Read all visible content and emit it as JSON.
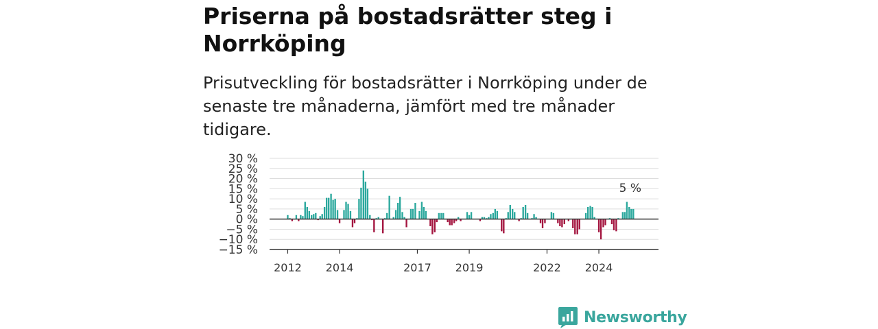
{
  "header": {
    "title": "Priserna på bostadsrätter steg i Norrköping",
    "subtitle": "Prisutveckling för bostadsrätter i Norrköping under de senaste tre månaderna, jämfört med tre månader tidigare."
  },
  "brand": {
    "name": "Newsworthy"
  },
  "colors": {
    "positive": "#2ba89d",
    "negative": "#a3153f",
    "grid": "#dddddd",
    "axis": "#333333",
    "brand": "#3aa69d"
  },
  "chart_data": {
    "type": "bar",
    "title": "Priserna på bostadsrätter steg i Norrköping",
    "subtitle": "Prisutveckling för bostadsrätter i Norrköping under de senaste tre månaderna, jämfört med tre månader tidigare.",
    "xlabel": "",
    "ylabel": "",
    "unit": "%",
    "ylim": [
      -15,
      30
    ],
    "y_ticks": [
      30,
      25,
      20,
      15,
      10,
      5,
      0,
      -5,
      -10,
      -15
    ],
    "y_tick_labels": [
      "30 %",
      "25 %",
      "20 %",
      "15 %",
      "10 %",
      "5 %",
      "0 %",
      "−5 %",
      "−10 %",
      "−15 %"
    ],
    "x_ticks": [
      {
        "label": "2012",
        "pos": 2012.0
      },
      {
        "label": "2014",
        "pos": 2014.0
      },
      {
        "label": "2017",
        "pos": 2017.0
      },
      {
        "label": "2019",
        "pos": 2019.0
      },
      {
        "label": "2022",
        "pos": 2022.0
      },
      {
        "label": "2024",
        "pos": 2024.0
      }
    ],
    "grid": true,
    "legend": "none",
    "x": [
      2012.0,
      2012.08,
      2012.17,
      2012.25,
      2012.33,
      2012.42,
      2012.5,
      2012.58,
      2012.67,
      2012.75,
      2012.83,
      2012.92,
      2013.0,
      2013.08,
      2013.17,
      2013.25,
      2013.33,
      2013.42,
      2013.5,
      2013.58,
      2013.67,
      2013.75,
      2013.83,
      2013.92,
      2014.0,
      2014.08,
      2014.17,
      2014.25,
      2014.33,
      2014.42,
      2014.5,
      2014.58,
      2014.67,
      2014.75,
      2014.83,
      2014.92,
      2015.0,
      2015.08,
      2015.17,
      2015.25,
      2015.33,
      2015.42,
      2015.5,
      2015.58,
      2015.67,
      2015.75,
      2015.83,
      2015.92,
      2016.0,
      2016.08,
      2016.17,
      2016.25,
      2016.33,
      2016.42,
      2016.5,
      2016.58,
      2016.67,
      2016.75,
      2016.83,
      2016.92,
      2017.0,
      2017.08,
      2017.17,
      2017.25,
      2017.33,
      2017.42,
      2017.5,
      2017.58,
      2017.67,
      2017.75,
      2017.83,
      2017.92,
      2018.0,
      2018.08,
      2018.17,
      2018.25,
      2018.33,
      2018.42,
      2018.5,
      2018.58,
      2018.67,
      2018.75,
      2018.83,
      2018.92,
      2019.0,
      2019.08,
      2019.17,
      2019.25,
      2019.33,
      2019.42,
      2019.5,
      2019.58,
      2019.67,
      2019.75,
      2019.83,
      2019.92,
      2020.0,
      2020.08,
      2020.17,
      2020.25,
      2020.33,
      2020.42,
      2020.5,
      2020.58,
      2020.67,
      2020.75,
      2020.83,
      2020.92,
      2021.0,
      2021.08,
      2021.17,
      2021.25,
      2021.33,
      2021.42,
      2021.5,
      2021.58,
      2021.67,
      2021.75,
      2021.83,
      2021.92,
      2022.0,
      2022.08,
      2022.17,
      2022.25,
      2022.33,
      2022.42,
      2022.5,
      2022.58,
      2022.67,
      2022.75,
      2022.83,
      2022.92,
      2023.0,
      2023.08,
      2023.17,
      2023.25,
      2023.33,
      2023.42,
      2023.5,
      2023.58,
      2023.67,
      2023.75,
      2023.83,
      2023.92,
      2024.0,
      2024.08,
      2024.17,
      2024.25,
      2024.33,
      2024.42,
      2024.5,
      2024.58,
      2024.67,
      2024.75,
      2024.83,
      2024.92,
      2025.0,
      2025.08,
      2025.17,
      2025.25,
      2025.33
    ],
    "values": [
      2,
      0.5,
      -1,
      0,
      2,
      -1,
      2,
      1.5,
      8.5,
      6,
      4,
      2,
      2.5,
      3,
      -0.5,
      1.5,
      2.5,
      6,
      10.5,
      10.5,
      12.5,
      9.5,
      10,
      4.5,
      -2,
      0,
      4.5,
      8.5,
      7.5,
      4,
      -4,
      -2,
      0.5,
      10,
      15.5,
      24,
      18.5,
      15,
      2,
      -0.5,
      -6.5,
      0.5,
      1,
      0,
      -7,
      0.5,
      3,
      11.5,
      0,
      1,
      4.5,
      8,
      11,
      3.5,
      1,
      -4,
      0,
      5,
      5,
      8,
      0,
      4,
      8.5,
      6,
      4,
      0,
      -3.5,
      -7.5,
      -6.5,
      -1.5,
      3,
      3,
      3,
      0,
      -1.5,
      -3,
      -3,
      -2,
      -1,
      1,
      -1,
      0,
      0,
      3.5,
      2,
      3.5,
      0,
      0,
      0,
      -1,
      1,
      1,
      0.5,
      1,
      2.5,
      3,
      5,
      4,
      0,
      -6,
      -7,
      0.5,
      3.5,
      7,
      5,
      3.5,
      0,
      -1,
      0.5,
      6,
      7,
      3,
      0,
      0.5,
      2.5,
      1,
      0,
      -2,
      -4.5,
      -2,
      0,
      0,
      3.5,
      3,
      0,
      -2,
      -3.5,
      -4,
      -2.5,
      0,
      -1,
      0,
      -4.5,
      -7.5,
      -7.5,
      -5,
      0,
      0,
      3,
      6,
      6.5,
      6,
      1,
      0,
      -6.5,
      -10,
      -4,
      -3,
      0,
      0.5,
      -2.5,
      -5.5,
      -6,
      0.5,
      0,
      3.5,
      3.5,
      8.5,
      6,
      5,
      5
    ],
    "data_labels": [
      {
        "x": 2025.0,
        "value": 5,
        "text": "5 %"
      }
    ]
  }
}
